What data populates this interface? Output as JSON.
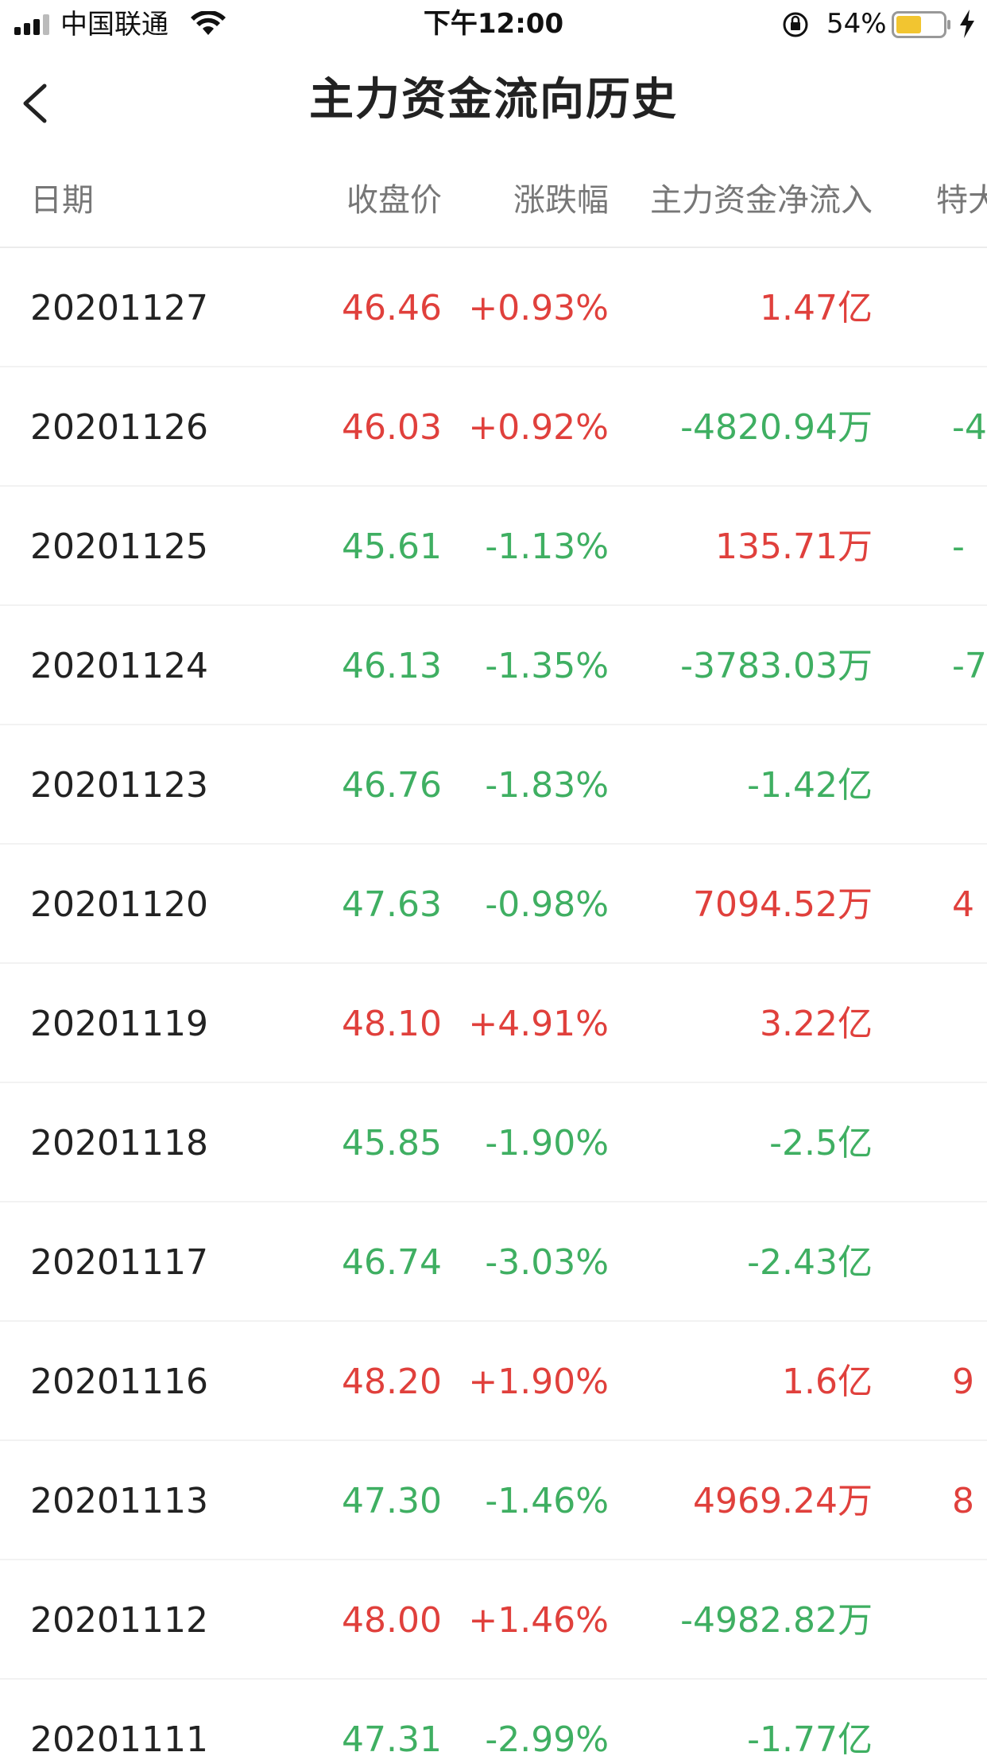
{
  "status_bar": {
    "carrier": "中国联通",
    "time": "下午12:00",
    "battery_percent": "54%"
  },
  "nav": {
    "title": "主力资金流向历史"
  },
  "header": {
    "date": "日期",
    "close": "收盘价",
    "change": "涨跌幅",
    "main_net_inflow": "主力资金净流入",
    "super_large": "特大"
  },
  "colors": {
    "up": "#e0403c",
    "down": "#3faf62"
  },
  "rows": [
    {
      "date": "20201127",
      "close": "46.46",
      "close_color": "red",
      "change": "+0.93%",
      "change_color": "red",
      "main": "1.47亿",
      "main_color": "red",
      "super": "",
      "super_color": "red"
    },
    {
      "date": "20201126",
      "close": "46.03",
      "close_color": "red",
      "change": "+0.92%",
      "change_color": "red",
      "main": "-4820.94万",
      "main_color": "green",
      "super": "-4",
      "super_color": "green"
    },
    {
      "date": "20201125",
      "close": "45.61",
      "close_color": "green",
      "change": "-1.13%",
      "change_color": "green",
      "main": "135.71万",
      "main_color": "red",
      "super": "-",
      "super_color": "green"
    },
    {
      "date": "20201124",
      "close": "46.13",
      "close_color": "green",
      "change": "-1.35%",
      "change_color": "green",
      "main": "-3783.03万",
      "main_color": "green",
      "super": "-7",
      "super_color": "green"
    },
    {
      "date": "20201123",
      "close": "46.76",
      "close_color": "green",
      "change": "-1.83%",
      "change_color": "green",
      "main": "-1.42亿",
      "main_color": "green",
      "super": "",
      "super_color": "green"
    },
    {
      "date": "20201120",
      "close": "47.63",
      "close_color": "green",
      "change": "-0.98%",
      "change_color": "green",
      "main": "7094.52万",
      "main_color": "red",
      "super": "4",
      "super_color": "red"
    },
    {
      "date": "20201119",
      "close": "48.10",
      "close_color": "red",
      "change": "+4.91%",
      "change_color": "red",
      "main": "3.22亿",
      "main_color": "red",
      "super": "",
      "super_color": "red"
    },
    {
      "date": "20201118",
      "close": "45.85",
      "close_color": "green",
      "change": "-1.90%",
      "change_color": "green",
      "main": "-2.5亿",
      "main_color": "green",
      "super": "",
      "super_color": "green"
    },
    {
      "date": "20201117",
      "close": "46.74",
      "close_color": "green",
      "change": "-3.03%",
      "change_color": "green",
      "main": "-2.43亿",
      "main_color": "green",
      "super": "",
      "super_color": "green"
    },
    {
      "date": "20201116",
      "close": "48.20",
      "close_color": "red",
      "change": "+1.90%",
      "change_color": "red",
      "main": "1.6亿",
      "main_color": "red",
      "super": "9",
      "super_color": "red"
    },
    {
      "date": "20201113",
      "close": "47.30",
      "close_color": "green",
      "change": "-1.46%",
      "change_color": "green",
      "main": "4969.24万",
      "main_color": "red",
      "super": "8",
      "super_color": "red"
    },
    {
      "date": "20201112",
      "close": "48.00",
      "close_color": "red",
      "change": "+1.46%",
      "change_color": "red",
      "main": "-4982.82万",
      "main_color": "green",
      "super": "",
      "super_color": "green"
    },
    {
      "date": "20201111",
      "close": "47.31",
      "close_color": "green",
      "change": "-2.99%",
      "change_color": "green",
      "main": "-1.77亿",
      "main_color": "green",
      "super": "",
      "super_color": "green"
    }
  ]
}
